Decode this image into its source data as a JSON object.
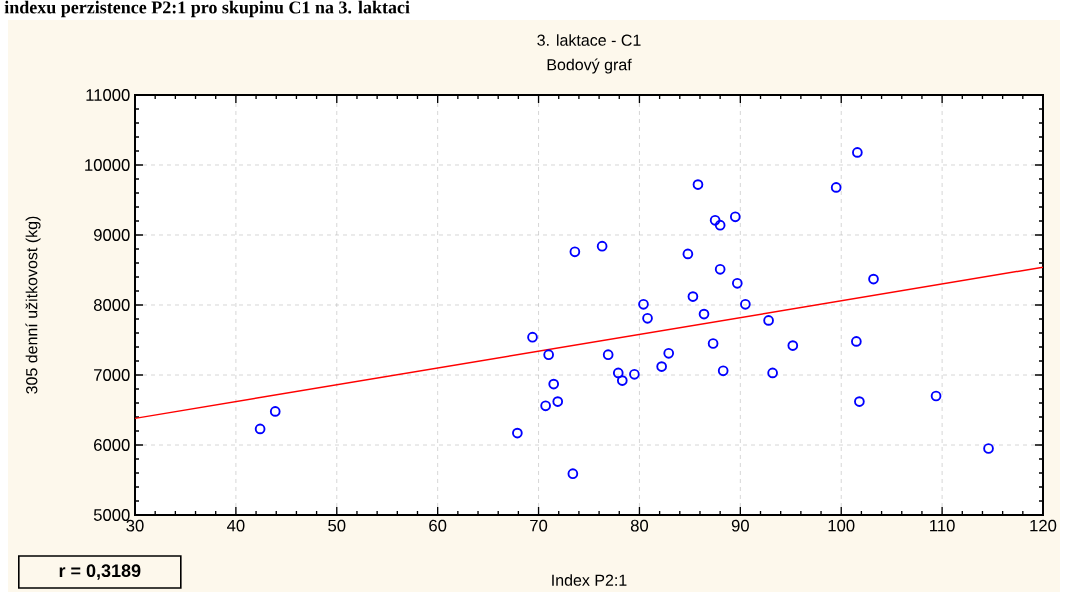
{
  "chart_data": {
    "type": "scatter",
    "title": "3. laktace - C1",
    "subtitle": "Bodový graf",
    "xlabel": "Index P2:1",
    "ylabel": "305 denní užitkovost (kg)",
    "annotations": [
      "indexu perzistence P2:1 pro skupinu C1 na 3. laktaci",
      "r = 0,3189"
    ],
    "xlim": [
      30,
      120
    ],
    "ylim": [
      5000,
      11000
    ],
    "xticks": [
      30,
      40,
      50,
      60,
      70,
      80,
      90,
      100,
      110,
      120
    ],
    "yticks": [
      5000,
      6000,
      7000,
      8000,
      9000,
      10000,
      11000
    ],
    "grid": true,
    "series": [
      {
        "marker": "circle",
        "color": "#0000ff",
        "x": [
          42.4,
          43.9,
          67.9,
          69.4,
          71.0,
          71.5,
          70.7,
          71.9,
          73.4,
          76.9,
          77.9,
          78.3,
          79.5,
          82.2,
          82.9,
          87.3,
          88.3,
          93.2,
          92.8,
          73.6,
          76.3,
          85.8,
          87.5,
          88.0,
          89.5,
          84.8,
          88.0,
          89.7,
          85.3,
          80.4,
          90.5,
          80.8,
          86.4,
          101.6,
          99.5,
          103.2,
          95.2,
          101.5,
          101.8,
          109.4,
          114.6
        ],
        "values": [
          6230,
          6480,
          6170,
          7540,
          7290,
          6870,
          6560,
          6620,
          5590,
          7290,
          7030,
          6920,
          7010,
          7120,
          7310,
          7450,
          7060,
          7030,
          7780,
          8760,
          8840,
          9720,
          9210,
          9140,
          9260,
          8730,
          8510,
          8310,
          8120,
          8010,
          8010,
          7810,
          7870,
          10180,
          9680,
          8370,
          7420,
          7480,
          6620,
          6700,
          5950
        ]
      },
      {
        "type": "line",
        "color": "#ff0000",
        "x": [
          30,
          120
        ],
        "values": [
          6380,
          8540
        ]
      }
    ]
  }
}
